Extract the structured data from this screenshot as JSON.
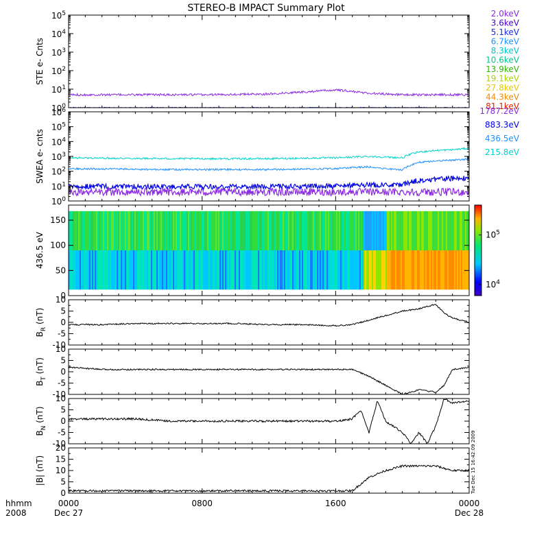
{
  "title": "STEREO-B IMPACT Summary Plot",
  "time_axis": {
    "label_top": "hhmm",
    "label_bottom": "2008",
    "ticks": [
      {
        "hours": 0,
        "top": "0000",
        "bottom": "Dec 27"
      },
      {
        "hours": 8,
        "top": "0800",
        "bottom": ""
      },
      {
        "hours": 16,
        "top": "1600",
        "bottom": ""
      },
      {
        "hours": 24,
        "top": "0000",
        "bottom": "Dec 28"
      }
    ]
  },
  "timestamp": "Tue Dec 15 16:42:09 2009",
  "colors": {
    "ste_2.0": "#8a2be2",
    "ste_3.6": "#4b00c8",
    "ste_5.1": "#1a2cf0",
    "ste_6.7": "#1e90ff",
    "ste_8.3": "#00c8c8",
    "ste_10.6": "#00c88c",
    "ste_13.9": "#32b400",
    "ste_19.1": "#aad200",
    "ste_27.8": "#e6c800",
    "ste_44.3": "#f08c00",
    "ste_81.1": "#e02000",
    "swea_1787": "#8a2be2",
    "swea_883": "#0000e6",
    "swea_436": "#1e90ff",
    "swea_215": "#00d2c8"
  },
  "chart_data": [
    {
      "type": "line",
      "panel": "STE",
      "ylabel": "STE e- Cnts",
      "yscale": "log",
      "ylim": [
        1,
        100000
      ],
      "ytick_labels": [
        "10^0",
        "10^1",
        "10^2",
        "10^3",
        "10^4",
        "10^5"
      ],
      "legend": [
        {
          "label": "2.0keV",
          "color_key": "ste_2.0"
        },
        {
          "label": "3.6keV",
          "color_key": "ste_3.6"
        },
        {
          "label": "5.1keV",
          "color_key": "ste_5.1"
        },
        {
          "label": "6.7keV",
          "color_key": "ste_6.7"
        },
        {
          "label": "8.3keV",
          "color_key": "ste_8.3"
        },
        {
          "label": "10.6keV",
          "color_key": "ste_10.6"
        },
        {
          "label": "13.9keV",
          "color_key": "ste_13.9"
        },
        {
          "label": "19.1keV",
          "color_key": "ste_19.1"
        },
        {
          "label": "27.8keV",
          "color_key": "ste_27.8"
        },
        {
          "label": "44.3keV",
          "color_key": "ste_44.3"
        },
        {
          "label": "81.1keV",
          "color_key": "ste_81.1"
        }
      ],
      "series": [
        {
          "color_key": "ste_2.0",
          "x": [
            0,
            4,
            8,
            12,
            14,
            16,
            18,
            20,
            24
          ],
          "y": [
            5,
            5,
            5,
            5.5,
            7,
            9,
            6,
            5,
            5
          ]
        },
        {
          "color_key": "ste_5.1",
          "x": [
            0,
            24
          ],
          "y": [
            1,
            1
          ]
        }
      ]
    },
    {
      "type": "line",
      "panel": "SWEA",
      "ylabel": "SWEA e- cnts",
      "yscale": "log",
      "ylim": [
        1,
        1000000
      ],
      "ytick_labels": [
        "10^0",
        "10^1",
        "10^2",
        "10^3",
        "10^4",
        "10^5",
        "10^6"
      ],
      "legend": [
        {
          "label": "1787.2eV",
          "color_key": "swea_1787"
        },
        {
          "label": "883.3eV",
          "color_key": "swea_883"
        },
        {
          "label": "436.5eV",
          "color_key": "swea_436"
        },
        {
          "label": "215.8eV",
          "color_key": "swea_215"
        }
      ],
      "series": [
        {
          "color_key": "swea_215",
          "x": [
            0,
            6,
            12,
            16,
            18,
            19,
            20,
            21,
            22,
            23,
            24
          ],
          "y": [
            800,
            700,
            700,
            800,
            1000,
            900,
            800,
            2000,
            2500,
            2800,
            3500
          ]
        },
        {
          "color_key": "swea_436",
          "x": [
            0,
            6,
            12,
            16,
            18,
            19,
            20,
            21,
            22,
            23,
            24
          ],
          "y": [
            150,
            130,
            130,
            150,
            200,
            150,
            120,
            400,
            500,
            550,
            650
          ]
        },
        {
          "color_key": "swea_883",
          "x": [
            0,
            6,
            12,
            16,
            18,
            20,
            21,
            22,
            24
          ],
          "y": [
            10,
            9,
            9,
            10,
            12,
            12,
            25,
            30,
            35
          ]
        },
        {
          "color_key": "swea_1787",
          "x": [
            0,
            12,
            24
          ],
          "y": [
            4,
            4,
            4
          ]
        }
      ]
    },
    {
      "type": "heatmap",
      "panel": "PAD",
      "ylabel": "436.5 eV",
      "ylim": [
        0,
        180
      ],
      "yticks": [
        0,
        50,
        100,
        150
      ],
      "colorbar_ticks": [
        {
          "value": 10000,
          "label": "10^4"
        },
        {
          "value": 100000,
          "label": "10^5"
        }
      ],
      "colorbar_range": [
        6000,
        400000
      ],
      "regions": [
        {
          "from_hours": 0,
          "to_hours": 18,
          "description_level": "mid"
        },
        {
          "from_hours": 18,
          "to_hours": 24,
          "description_level": "high"
        }
      ]
    },
    {
      "type": "line",
      "panel": "BR",
      "ylabel": "B_R (nT)",
      "ylim": [
        -10,
        10
      ],
      "yticks": [
        -10,
        -5,
        0,
        5,
        10
      ],
      "series": [
        {
          "name": "",
          "x": [
            0,
            2,
            4,
            6,
            8,
            10,
            12,
            14,
            16,
            17,
            18,
            19,
            20,
            21,
            22,
            22.5,
            23,
            24
          ],
          "y": [
            -1,
            -1,
            -0.5,
            -0.5,
            -0.5,
            -0.5,
            -1,
            -1,
            -1.5,
            -1,
            1,
            3,
            5,
            6,
            8,
            4,
            2,
            0
          ]
        }
      ]
    },
    {
      "type": "line",
      "panel": "BT",
      "ylabel": "B_T (nT)",
      "ylim": [
        -10,
        10
      ],
      "yticks": [
        -10,
        -5,
        0,
        5,
        10
      ],
      "series": [
        {
          "name": "",
          "x": [
            0,
            2,
            4,
            6,
            8,
            10,
            12,
            14,
            16,
            17,
            18,
            18.5,
            19,
            20,
            21,
            22,
            22.5,
            23,
            24
          ],
          "y": [
            2,
            1,
            1,
            1,
            1,
            1,
            1,
            1,
            1,
            1,
            -2,
            -4,
            -6,
            -10,
            -8,
            -9,
            -6,
            1,
            2
          ]
        }
      ]
    },
    {
      "type": "line",
      "panel": "BN",
      "ylabel": "B_N (nT)",
      "ylim": [
        -10,
        10
      ],
      "yticks": [
        -10,
        -5,
        0,
        5,
        10
      ],
      "series": [
        {
          "name": "",
          "x": [
            0,
            2,
            4,
            6,
            8,
            10,
            12,
            14,
            16,
            17,
            17.5,
            18,
            18.5,
            19,
            20,
            20.5,
            21,
            21.5,
            22,
            22.5,
            23,
            24
          ],
          "y": [
            1,
            1,
            1,
            0,
            0,
            0,
            0,
            0,
            0,
            1,
            5,
            -5,
            9,
            0,
            -5,
            -10,
            -5,
            -10,
            -2,
            10,
            8,
            9
          ]
        }
      ]
    },
    {
      "type": "line",
      "panel": "B",
      "ylabel": "|B| (nT)",
      "ylim": [
        0,
        20
      ],
      "yticks": [
        0,
        5,
        10,
        15,
        20
      ],
      "series": [
        {
          "name": "",
          "x": [
            0,
            2,
            4,
            6,
            8,
            10,
            12,
            14,
            16,
            17,
            17.5,
            18,
            19,
            20,
            21,
            22,
            23,
            24
          ],
          "y": [
            1,
            1,
            1,
            1,
            1,
            1,
            1,
            1,
            1,
            1,
            4,
            7,
            10,
            12,
            12,
            12,
            10,
            10
          ]
        }
      ]
    }
  ]
}
